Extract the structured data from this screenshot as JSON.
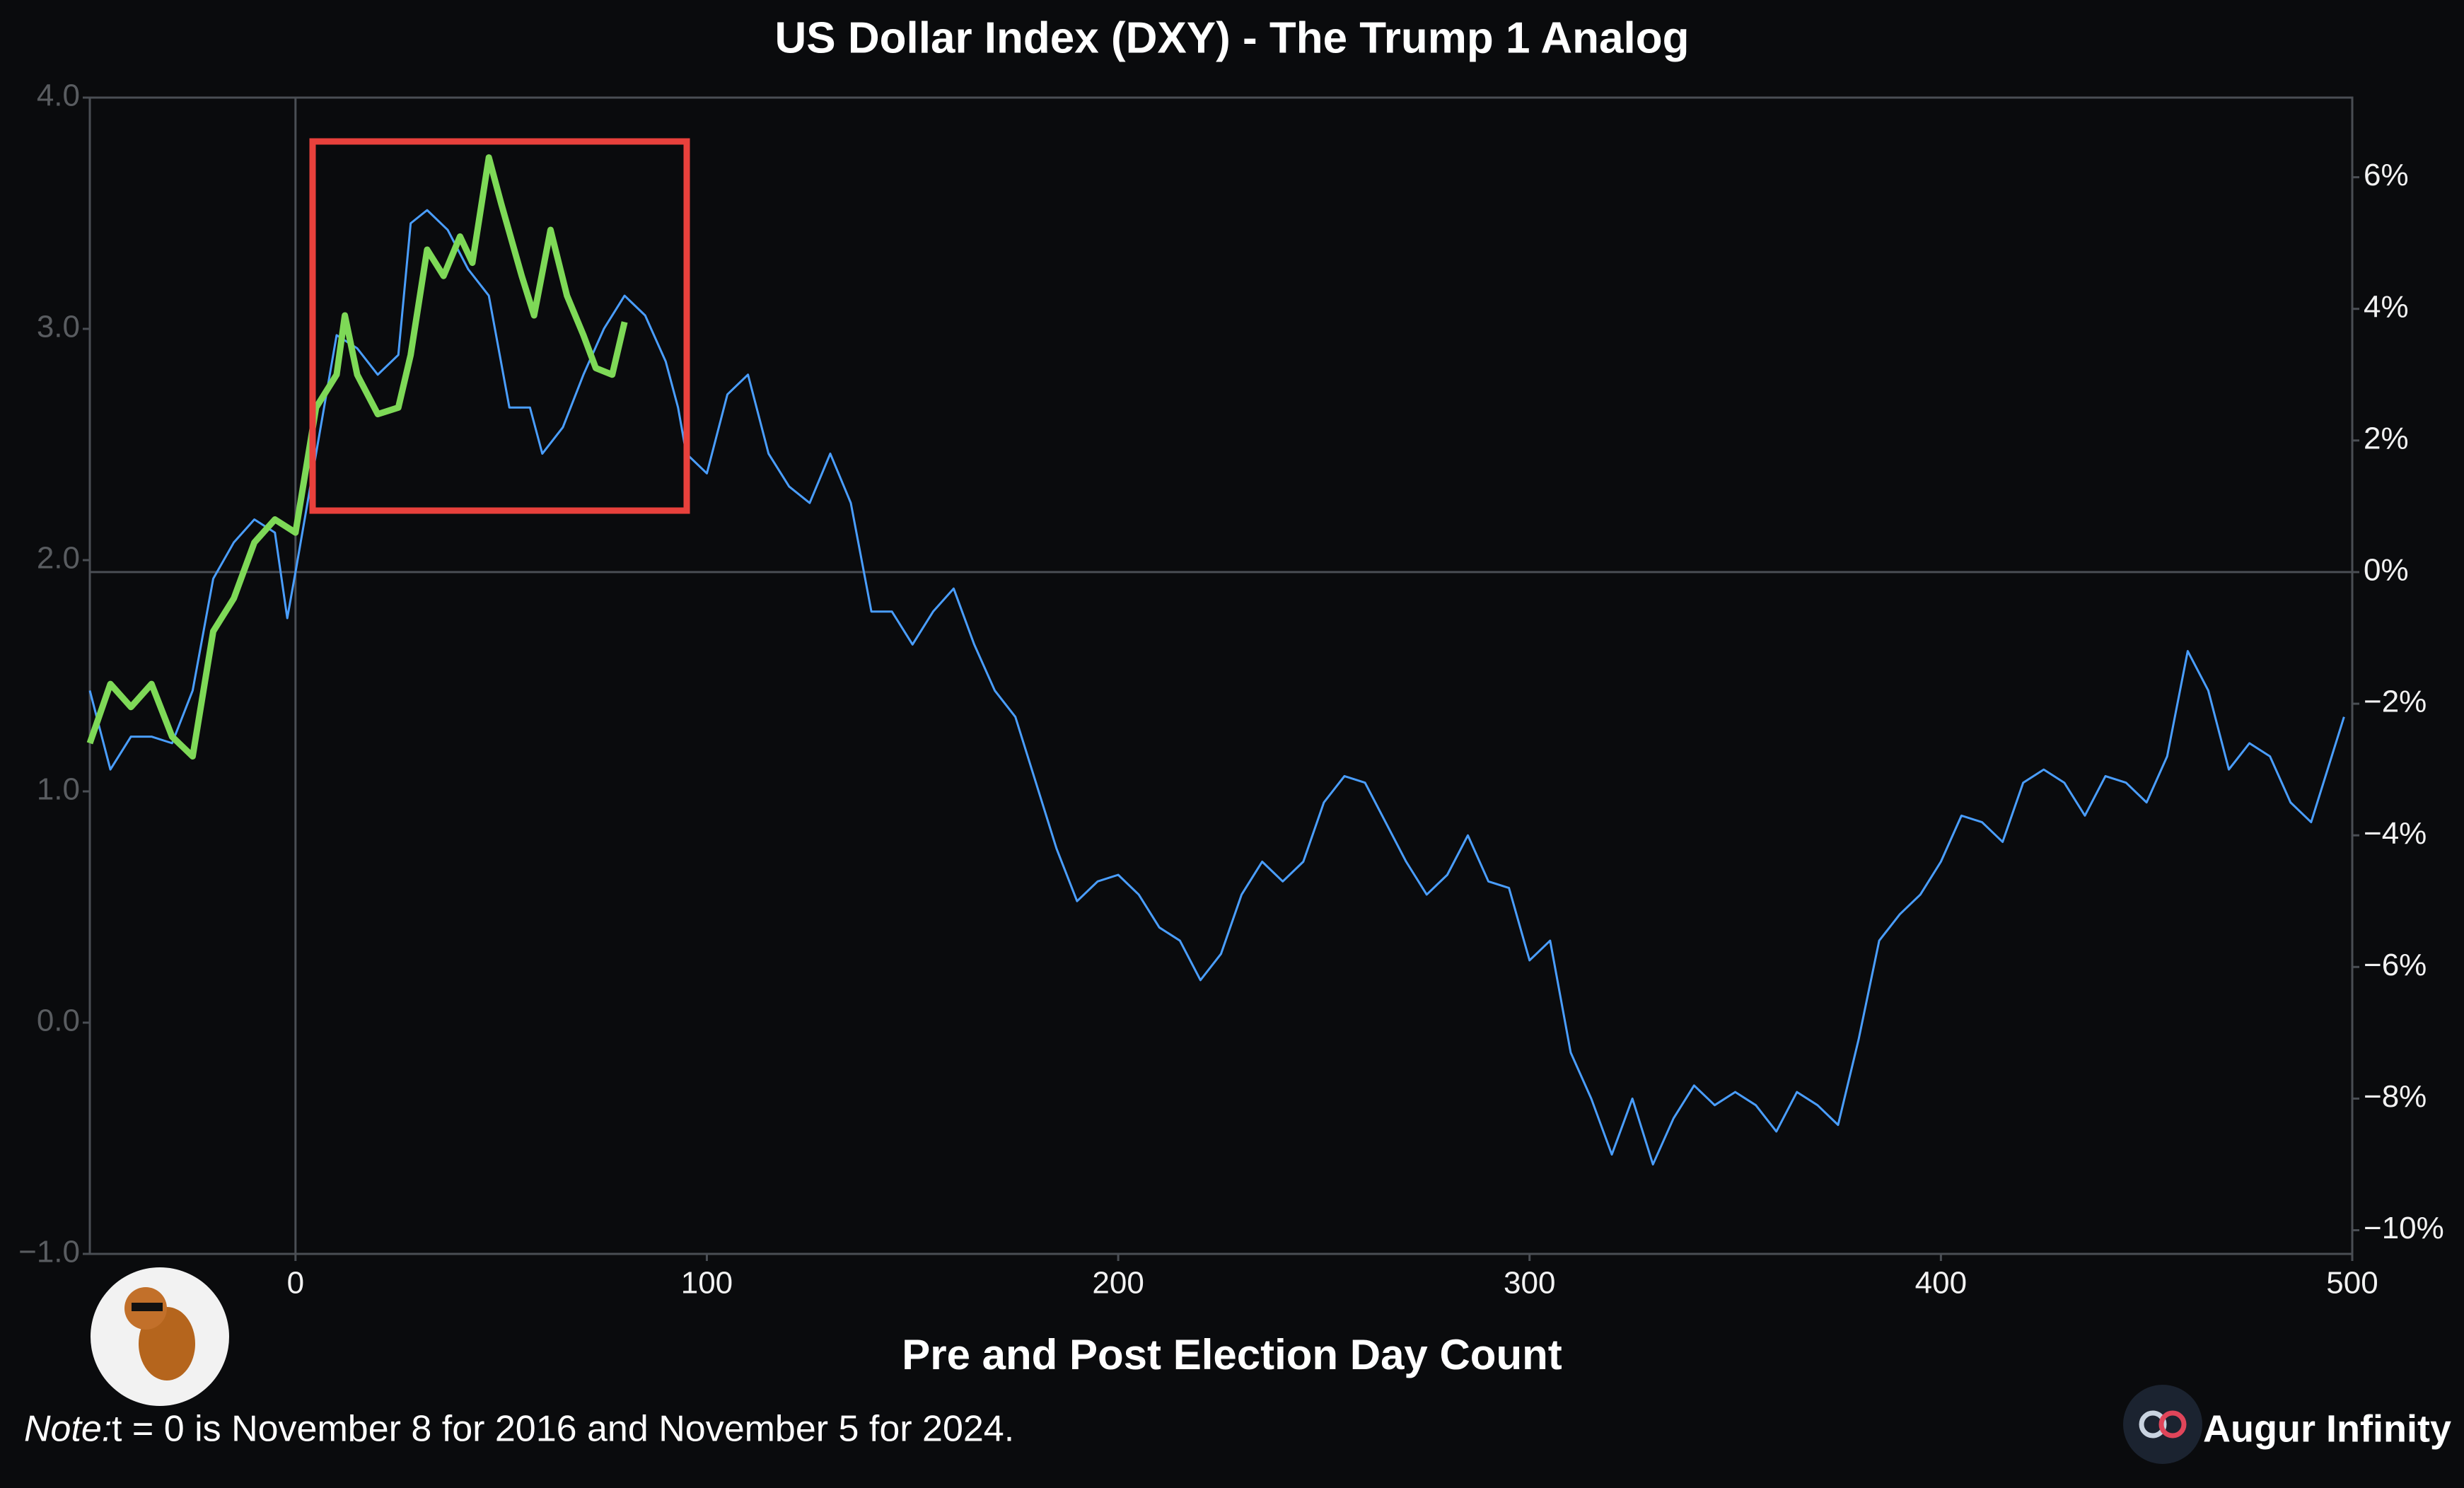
{
  "chart_data": {
    "type": "line",
    "title": "US Dollar Index (DXY) - The Trump 1 Analog",
    "x_label": "Pre and Post Election Day Count",
    "note_label": "Note:",
    "note_text": "t = 0 is November 8 for 2016 and November 5 for 2024.",
    "brand": "Augur Infinity",
    "xlim": [
      -50,
      500
    ],
    "xticks": [
      0,
      100,
      200,
      300,
      400,
      500
    ],
    "ylim": [
      -1,
      4
    ],
    "yticks": [
      {
        "value": -1,
        "label": "−1.0"
      },
      {
        "value": 0,
        "label": "0.0"
      },
      {
        "value": 1,
        "label": "1.0"
      },
      {
        "value": 2,
        "label": "2.0"
      },
      {
        "value": 3,
        "label": "3.0"
      },
      {
        "value": 4,
        "label": "4.0"
      }
    ],
    "y2lim": [
      -10.36,
      7.21
    ],
    "y2ticks": [
      {
        "value": -10,
        "label": "−10%"
      },
      {
        "value": -8,
        "label": "−8%"
      },
      {
        "value": -6,
        "label": "−6%"
      },
      {
        "value": -4,
        "label": "−4%"
      },
      {
        "value": -2,
        "label": "−2%"
      },
      {
        "value": 0,
        "label": "0%"
      },
      {
        "value": 2,
        "label": "2%"
      },
      {
        "value": 4,
        "label": "4%"
      },
      {
        "value": 6,
        "label": "6%"
      }
    ],
    "zero_lines": true,
    "series": [
      {
        "color": "#4a9eff",
        "width": 3,
        "axis": "y2",
        "x": [
          -50,
          -45,
          -40,
          -35,
          -30,
          -25,
          -20,
          -15,
          -10,
          -5,
          -2,
          0,
          5,
          10,
          15,
          20,
          25,
          28,
          32,
          37,
          42,
          47,
          52,
          57,
          60,
          65,
          70,
          75,
          80,
          85,
          90,
          93,
          95,
          100,
          105,
          110,
          115,
          120,
          125,
          130,
          135,
          140,
          145,
          150,
          155,
          160,
          165,
          170,
          175,
          180,
          185,
          190,
          195,
          200,
          205,
          210,
          215,
          220,
          225,
          230,
          235,
          240,
          245,
          250,
          255,
          260,
          265,
          270,
          275,
          280,
          285,
          290,
          295,
          300,
          305,
          310,
          315,
          320,
          325,
          330,
          335,
          340,
          345,
          350,
          355,
          360,
          365,
          370,
          375,
          380,
          385,
          390,
          395,
          400,
          405,
          410,
          415,
          420,
          425,
          430,
          435,
          440,
          445,
          450,
          455,
          460,
          465,
          470,
          475,
          480,
          485,
          490,
          495,
          498
        ],
        "values": [
          -1.8,
          -3.0,
          -2.5,
          -2.5,
          -2.6,
          -1.8,
          -0.1,
          0.45,
          0.8,
          0.6,
          -0.7,
          0,
          1.8,
          3.6,
          3.4,
          3.0,
          3.3,
          5.3,
          5.5,
          5.2,
          4.6,
          4.2,
          2.5,
          2.5,
          1.8,
          2.2,
          3.0,
          3.7,
          4.2,
          3.9,
          3.2,
          2.5,
          1.8,
          1.5,
          2.7,
          3.0,
          1.8,
          1.3,
          1.05,
          1.8,
          1.05,
          -0.6,
          -0.6,
          -1.1,
          -0.6,
          -0.25,
          -1.1,
          -1.8,
          -2.2,
          -3.2,
          -4.2,
          -5.0,
          -4.7,
          -4.6,
          -4.9,
          -5.4,
          -5.6,
          -6.2,
          -5.8,
          -4.9,
          -4.4,
          -4.7,
          -4.4,
          -3.5,
          -3.1,
          -3.2,
          -3.8,
          -4.4,
          -4.9,
          -4.6,
          -4.0,
          -4.7,
          -4.8,
          -5.9,
          -5.6,
          -7.3,
          -8.0,
          -8.85,
          -8.0,
          -9.0,
          -8.3,
          -7.8,
          -8.1,
          -7.9,
          -8.1,
          -8.5,
          -7.9,
          -8.1,
          -8.4,
          -7.1,
          -5.6,
          -5.2,
          -4.9,
          -4.4,
          -3.7,
          -3.8,
          -4.1,
          -3.2,
          -3.0,
          -3.2,
          -3.7,
          -3.1,
          -3.2,
          -3.5,
          -2.8,
          -1.2,
          -1.8,
          -3.0,
          -2.6,
          -2.8,
          -3.5,
          -3.8,
          -2.8,
          -2.2
        ]
      },
      {
        "color": "#7ed957",
        "width": 9,
        "axis": "y2",
        "x": [
          -50,
          -45,
          -40,
          -35,
          -30,
          -25,
          -20,
          -15,
          -10,
          -5,
          0,
          5,
          10,
          12,
          15,
          20,
          25,
          28,
          32,
          36,
          40,
          43,
          47,
          50,
          55,
          58,
          62,
          66,
          70,
          73,
          77,
          80
        ],
        "values": [
          -2.6,
          -1.7,
          -2.05,
          -1.7,
          -2.5,
          -2.8,
          -0.9,
          -0.4,
          0.45,
          0.8,
          0.6,
          2.5,
          3.0,
          3.9,
          3.0,
          2.4,
          2.5,
          3.3,
          4.9,
          4.5,
          5.1,
          4.7,
          6.3,
          5.6,
          4.5,
          3.9,
          5.2,
          4.2,
          3.6,
          3.1,
          3.0,
          3.8
        ]
      }
    ]
  }
}
